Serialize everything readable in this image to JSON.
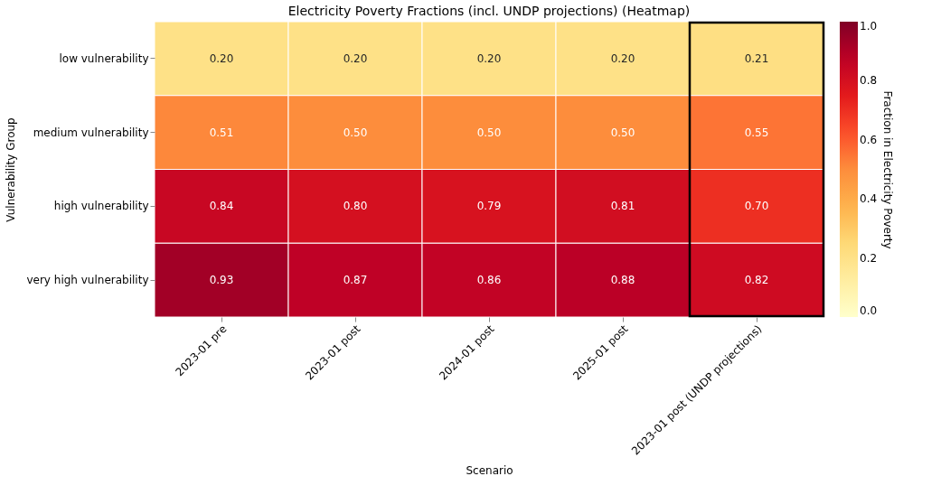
{
  "chart_data": {
    "type": "heatmap",
    "title": "Electricity Poverty Fractions (incl. UNDP projections) (Heatmap)",
    "xlabel": "Scenario",
    "ylabel": "Vulnerability Group",
    "clabel": "Fraction in Electricity Poverty",
    "categories": [
      "2023-01 pre",
      "2023-01 post",
      "2024-01 post",
      "2025-01 post",
      "2023-01 post (UNDP projections)"
    ],
    "y_categories": [
      "low vulnerability",
      "medium vulnerability",
      "high vulnerability",
      "very high vulnerability"
    ],
    "cells": [
      [
        0.2,
        0.2,
        0.2,
        0.2,
        0.21
      ],
      [
        0.51,
        0.5,
        0.5,
        0.5,
        0.55
      ],
      [
        0.84,
        0.8,
        0.79,
        0.81,
        0.7
      ],
      [
        0.93,
        0.87,
        0.86,
        0.88,
        0.82
      ]
    ],
    "cell_labels": [
      [
        "0.20",
        "0.20",
        "0.20",
        "0.20",
        "0.21"
      ],
      [
        "0.51",
        "0.50",
        "0.50",
        "0.50",
        "0.55"
      ],
      [
        "0.84",
        "0.80",
        "0.79",
        "0.81",
        "0.70"
      ],
      [
        "0.93",
        "0.87",
        "0.86",
        "0.88",
        "0.82"
      ]
    ],
    "clim": [
      0,
      1
    ],
    "cticks": [
      {
        "value": 0,
        "label": "0.0"
      },
      0.2,
      0.4,
      0.6,
      0.8,
      {
        "value": 1,
        "label": "1.0"
      }
    ]
  }
}
